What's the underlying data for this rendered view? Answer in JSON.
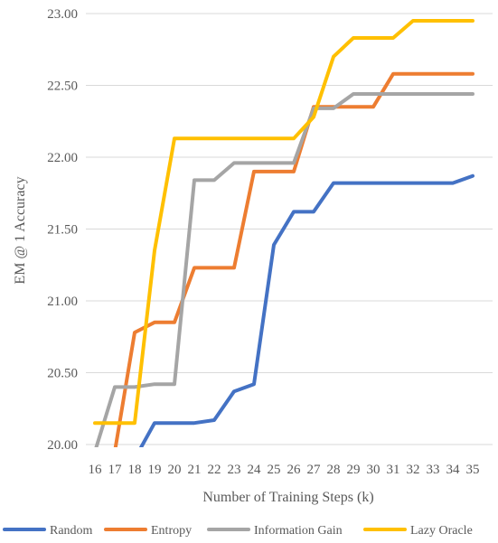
{
  "chart_data": {
    "type": "line",
    "title": "",
    "xlabel": "Number of Training Steps (k)",
    "ylabel": "EM @ 1 Accuracy",
    "x": [
      16,
      17,
      18,
      19,
      20,
      21,
      22,
      23,
      24,
      25,
      26,
      27,
      28,
      29,
      30,
      31,
      32,
      33,
      34,
      35
    ],
    "x_tick_labels": [
      "16",
      "17",
      "18",
      "19",
      "20",
      "21",
      "22",
      "23",
      "24",
      "25",
      "26",
      "27",
      "28",
      "29",
      "30",
      "31",
      "32",
      "33",
      "34",
      "35"
    ],
    "ylim": [
      20.0,
      23.0
    ],
    "y_ticks": [
      20.0,
      20.5,
      21.0,
      21.5,
      22.0,
      22.5,
      23.0
    ],
    "y_tick_labels": [
      "20.00",
      "20.50",
      "21.00",
      "21.50",
      "22.00",
      "22.50",
      "23.00"
    ],
    "grid": true,
    "legend_position": "bottom",
    "series": [
      {
        "name": "Random",
        "color": "#4472c4",
        "values": [
          19.7,
          19.8,
          19.9,
          20.15,
          20.15,
          20.15,
          20.17,
          20.37,
          20.42,
          21.39,
          21.62,
          21.62,
          21.82,
          21.82,
          21.82,
          21.82,
          21.82,
          21.82,
          21.82,
          21.87
        ]
      },
      {
        "name": "Entropy",
        "color": "#ed7d31",
        "values": [
          19.8,
          19.95,
          20.78,
          20.85,
          20.85,
          21.23,
          21.23,
          21.23,
          21.9,
          21.9,
          21.9,
          22.35,
          22.35,
          22.35,
          22.35,
          22.58,
          22.58,
          22.58,
          22.58,
          22.58
        ]
      },
      {
        "name": "Information Gain",
        "color": "#a5a5a5",
        "values": [
          19.95,
          20.4,
          20.4,
          20.42,
          20.42,
          21.84,
          21.84,
          21.96,
          21.96,
          21.96,
          21.96,
          22.34,
          22.34,
          22.44,
          22.44,
          22.44,
          22.44,
          22.44,
          22.44,
          22.44
        ]
      },
      {
        "name": "Lazy Oracle",
        "color": "#ffc000",
        "values": [
          20.15,
          20.15,
          20.15,
          21.35,
          22.13,
          22.13,
          22.13,
          22.13,
          22.13,
          22.13,
          22.13,
          22.28,
          22.7,
          22.83,
          22.83,
          22.83,
          22.95,
          22.95,
          22.95,
          22.95
        ]
      }
    ]
  }
}
